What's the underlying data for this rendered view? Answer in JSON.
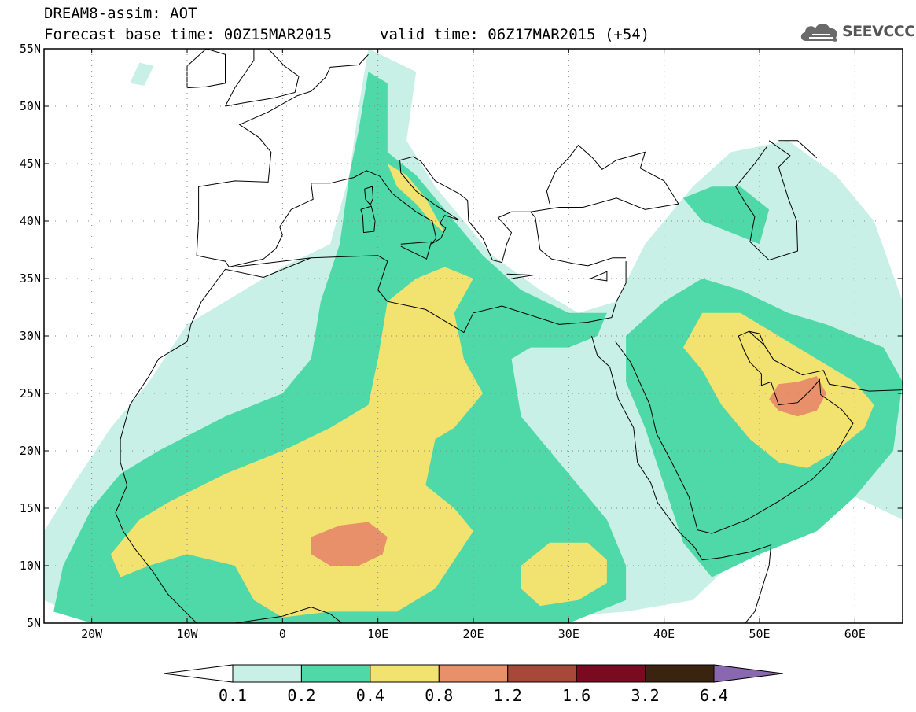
{
  "header": {
    "title": "DREAM8-assim: AOT",
    "base_time": "Forecast base time: 00Z15MAR2015",
    "valid_time": "valid time: 06Z17MAR2015 (+54)"
  },
  "logo": {
    "text": "SEEVCCC",
    "icon": "cloud-icon"
  },
  "chart_data": {
    "type": "heatmap",
    "title": "DREAM8-assim: AOT",
    "variable": "AOT",
    "x_range": [
      -25,
      65
    ],
    "y_range": [
      5,
      55
    ],
    "grid": true,
    "lon_ticks": [
      {
        "value": -20,
        "label": "20W"
      },
      {
        "value": -10,
        "label": "10W"
      },
      {
        "value": 0,
        "label": "0"
      },
      {
        "value": 10,
        "label": "10E"
      },
      {
        "value": 20,
        "label": "20E"
      },
      {
        "value": 30,
        "label": "30E"
      },
      {
        "value": 40,
        "label": "40E"
      },
      {
        "value": 50,
        "label": "50E"
      },
      {
        "value": 60,
        "label": "60E"
      }
    ],
    "lat_ticks": [
      {
        "value": 55,
        "label": "55N"
      },
      {
        "value": 50,
        "label": "50N"
      },
      {
        "value": 45,
        "label": "45N"
      },
      {
        "value": 40,
        "label": "40N"
      },
      {
        "value": 35,
        "label": "35N"
      },
      {
        "value": 30,
        "label": "30N"
      },
      {
        "value": 25,
        "label": "25N"
      },
      {
        "value": 20,
        "label": "20N"
      },
      {
        "value": 15,
        "label": "15N"
      },
      {
        "value": 10,
        "label": "10N"
      },
      {
        "value": 5,
        "label": "5N"
      }
    ],
    "colorbar": {
      "levels": [
        "0.1",
        "0.2",
        "0.4",
        "0.8",
        "1.2",
        "1.6",
        "3.2",
        "6.4"
      ],
      "colors": [
        "#c8f0e6",
        "#4fd8a8",
        "#f2e270",
        "#e8906a",
        "#a84838",
        "#7a0a20",
        "#3a2410",
        "#8a68b0"
      ],
      "under_color": "#ffffff"
    },
    "regions": [
      {
        "level": 1,
        "color": "#c8f0e6",
        "points": [
          [
            -25,
            13
          ],
          [
            -22,
            17
          ],
          [
            -18,
            22
          ],
          [
            -14,
            26
          ],
          [
            -10,
            31
          ],
          [
            -4,
            34
          ],
          [
            0,
            36
          ],
          [
            5,
            38
          ],
          [
            7,
            44
          ],
          [
            8,
            50
          ],
          [
            9,
            55
          ],
          [
            14,
            53
          ],
          [
            13,
            47
          ],
          [
            16,
            43
          ],
          [
            19,
            40
          ],
          [
            22,
            37
          ],
          [
            27,
            34
          ],
          [
            31,
            32
          ],
          [
            35,
            33
          ],
          [
            38,
            38
          ],
          [
            43,
            43
          ],
          [
            47,
            46
          ],
          [
            53,
            47
          ],
          [
            58,
            44
          ],
          [
            62,
            40
          ],
          [
            65,
            33
          ],
          [
            65,
            14
          ],
          [
            60,
            16
          ],
          [
            55,
            13
          ],
          [
            48,
            11
          ],
          [
            43,
            7
          ],
          [
            36,
            6
          ],
          [
            20,
            5
          ],
          [
            8,
            5
          ],
          [
            0,
            5
          ],
          [
            -10,
            5
          ],
          [
            -20,
            5
          ],
          [
            -25,
            7
          ]
        ]
      },
      {
        "level": 1,
        "color": "#c8f0e6",
        "points": [
          [
            -16,
            52
          ],
          [
            -15,
            53.8
          ],
          [
            -13.5,
            53.5
          ],
          [
            -14.5,
            51.8
          ]
        ]
      },
      {
        "level": 2,
        "color": "#4fd8a8",
        "points": [
          [
            -24,
            6
          ],
          [
            -23,
            10
          ],
          [
            -20,
            15
          ],
          [
            -17,
            18
          ],
          [
            -13,
            20
          ],
          [
            -6,
            23
          ],
          [
            0,
            25
          ],
          [
            3,
            28
          ],
          [
            4,
            33
          ],
          [
            6,
            38
          ],
          [
            7,
            44
          ],
          [
            8,
            48
          ],
          [
            9,
            53
          ],
          [
            11,
            52
          ],
          [
            11,
            46
          ],
          [
            14,
            44
          ],
          [
            17,
            41
          ],
          [
            21,
            37
          ],
          [
            25,
            34
          ],
          [
            30,
            32
          ],
          [
            34,
            32
          ],
          [
            33,
            30
          ],
          [
            30,
            29
          ],
          [
            26,
            29
          ],
          [
            24,
            28
          ],
          [
            25,
            23
          ],
          [
            30,
            18
          ],
          [
            34,
            14
          ],
          [
            36,
            10
          ],
          [
            36,
            7
          ],
          [
            30,
            5
          ],
          [
            20,
            5
          ],
          [
            10,
            5
          ],
          [
            0,
            5
          ],
          [
            -10,
            5
          ],
          [
            -20,
            5
          ]
        ]
      },
      {
        "level": 2,
        "color": "#4fd8a8",
        "points": [
          [
            36,
            30
          ],
          [
            40,
            33
          ],
          [
            44,
            35
          ],
          [
            48,
            34
          ],
          [
            53,
            32
          ],
          [
            57,
            31
          ],
          [
            63,
            29
          ],
          [
            65,
            26
          ],
          [
            64,
            20
          ],
          [
            60,
            16
          ],
          [
            56,
            13
          ],
          [
            50,
            11
          ],
          [
            45,
            9
          ],
          [
            42,
            12
          ],
          [
            40,
            17
          ],
          [
            38,
            22
          ],
          [
            36,
            26
          ]
        ]
      },
      {
        "level": 2,
        "color": "#4fd8a8",
        "points": [
          [
            42,
            42
          ],
          [
            45,
            43
          ],
          [
            48,
            43
          ],
          [
            51,
            41
          ],
          [
            50,
            38
          ],
          [
            47,
            39
          ],
          [
            44,
            40
          ]
        ]
      },
      {
        "level": 3,
        "color": "#f2e270",
        "points": [
          [
            -18,
            11
          ],
          [
            -15,
            14
          ],
          [
            -12,
            15.5
          ],
          [
            -6,
            18
          ],
          [
            0,
            20
          ],
          [
            5,
            22
          ],
          [
            9,
            24
          ],
          [
            10,
            28
          ],
          [
            11,
            33
          ],
          [
            14,
            35
          ],
          [
            17,
            36
          ],
          [
            20,
            35
          ],
          [
            18,
            32
          ],
          [
            19,
            28
          ],
          [
            21,
            25
          ],
          [
            18,
            22
          ],
          [
            16,
            21
          ],
          [
            15,
            17
          ],
          [
            18,
            15
          ],
          [
            20,
            13
          ],
          [
            16,
            8
          ],
          [
            12,
            6
          ],
          [
            5,
            6
          ],
          [
            0,
            5.5
          ],
          [
            -3,
            7
          ],
          [
            -5,
            10
          ],
          [
            -10,
            11
          ],
          [
            -14,
            10
          ],
          [
            -17,
            9
          ]
        ]
      },
      {
        "level": 3,
        "color": "#f2e270",
        "points": [
          [
            11,
            45
          ],
          [
            13,
            44
          ],
          [
            15,
            42
          ],
          [
            17,
            39
          ],
          [
            15.5,
            40
          ],
          [
            14,
            41.5
          ],
          [
            12,
            43
          ]
        ]
      },
      {
        "level": 3,
        "color": "#f2e270",
        "points": [
          [
            25,
            8
          ],
          [
            25,
            10
          ],
          [
            28,
            12
          ],
          [
            32,
            12
          ],
          [
            34,
            10.5
          ],
          [
            34,
            8.5
          ],
          [
            31,
            7
          ],
          [
            27,
            6.5
          ]
        ]
      },
      {
        "level": 3,
        "color": "#f2e270",
        "points": [
          [
            42,
            29
          ],
          [
            44,
            32
          ],
          [
            48,
            32
          ],
          [
            52,
            30
          ],
          [
            56,
            28
          ],
          [
            60,
            26
          ],
          [
            62,
            24
          ],
          [
            61,
            22
          ],
          [
            58,
            20
          ],
          [
            55,
            18.5
          ],
          [
            52,
            19
          ],
          [
            49,
            21
          ],
          [
            46,
            24
          ],
          [
            44,
            27
          ]
        ]
      },
      {
        "level": 4,
        "color": "#e8906a",
        "points": [
          [
            3,
            11
          ],
          [
            3,
            12.5
          ],
          [
            6,
            13.5
          ],
          [
            9,
            13.8
          ],
          [
            11,
            12.5
          ],
          [
            10.5,
            11
          ],
          [
            8,
            10
          ],
          [
            5,
            10
          ]
        ]
      },
      {
        "level": 4,
        "color": "#e8906a",
        "points": [
          [
            51,
            24.5
          ],
          [
            52,
            25.8
          ],
          [
            54,
            26
          ],
          [
            56,
            26.5
          ],
          [
            57,
            25
          ],
          [
            56,
            23.5
          ],
          [
            54,
            23
          ],
          [
            52,
            23.5
          ]
        ]
      }
    ]
  }
}
